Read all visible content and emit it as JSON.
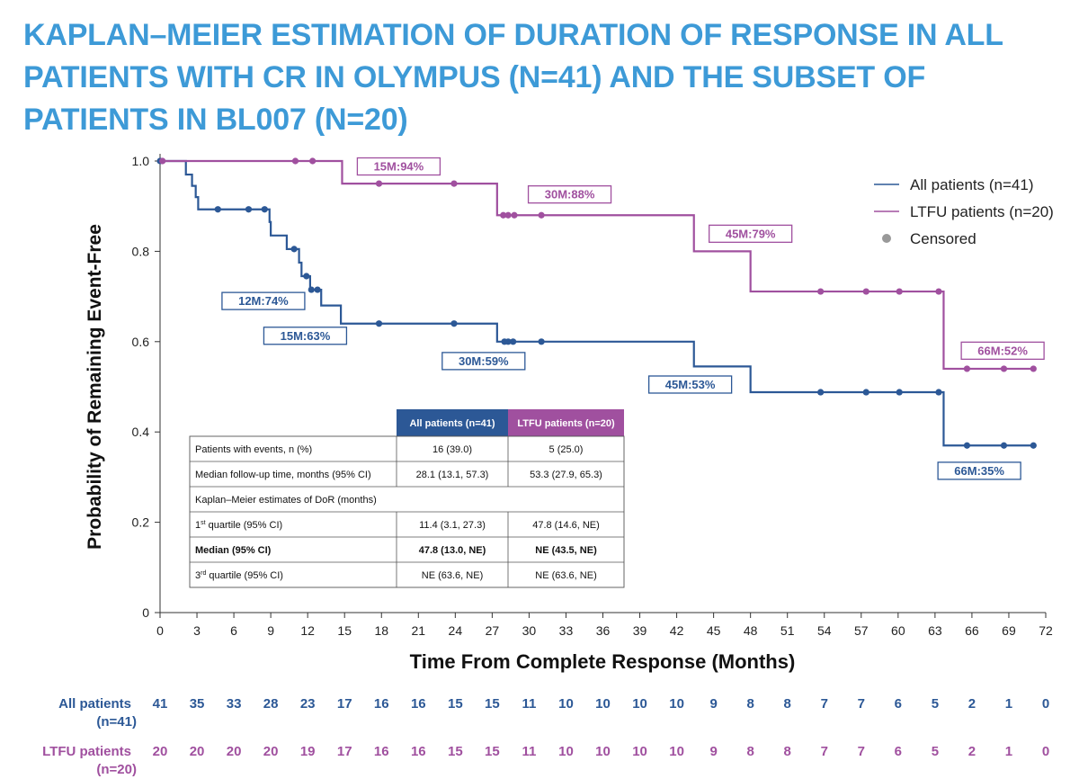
{
  "title": "KAPLAN–MEIER ESTIMATION OF DURATION OF RESPONSE IN ALL PATIENTS WITH CR IN OLYMPUS (N=41) AND THE SUBSET OF PATIENTS IN BL007 (N=20)",
  "colors": {
    "title": "#3d9ad7",
    "all": "#2c5896",
    "ltfu": "#a0509f",
    "censored": "#999999"
  },
  "chart_data": {
    "type": "line",
    "title": "KAPLAN–MEIER ESTIMATION OF DURATION OF RESPONSE IN ALL PATIENTS WITH CR IN OLYMPUS (N=41) AND THE SUBSET OF PATIENTS IN BL007 (N=20)",
    "xlabel": "Time From Complete Response (Months)",
    "ylabel": "Probability of Remaining Event-Free",
    "xlim": [
      0,
      72
    ],
    "ylim": [
      0,
      1.0
    ],
    "xticks": [
      0,
      3,
      6,
      9,
      12,
      15,
      18,
      21,
      24,
      27,
      30,
      33,
      36,
      39,
      42,
      45,
      48,
      51,
      54,
      57,
      60,
      63,
      66,
      69,
      72
    ],
    "yticks": [
      0,
      0.2,
      0.4,
      0.6,
      0.8,
      1.0
    ],
    "ytick_labels": [
      "0",
      "0.2",
      "0.4",
      "0.6",
      "0.8",
      "1.0"
    ],
    "legend_position": "top-right",
    "legend": [
      {
        "label": "All patients (n=41)",
        "kind": "line",
        "series": "all"
      },
      {
        "label": "LTFU patients (n=20)",
        "kind": "line",
        "series": "ltfu"
      },
      {
        "label": "Censored",
        "kind": "dot"
      }
    ],
    "series": [
      {
        "key": "all",
        "name": "All patients (n=41)",
        "steps": [
          [
            0,
            1.0
          ],
          [
            2.1,
            0.97
          ],
          [
            2.6,
            0.945
          ],
          [
            2.9,
            0.92
          ],
          [
            3.1,
            0.893
          ],
          [
            8.9,
            0.865
          ],
          [
            9.0,
            0.835
          ],
          [
            10.3,
            0.805
          ],
          [
            11.3,
            0.775
          ],
          [
            11.5,
            0.745
          ],
          [
            12.2,
            0.715
          ],
          [
            13.1,
            0.68
          ],
          [
            14.7,
            0.64
          ],
          [
            27.4,
            0.6
          ],
          [
            43.4,
            0.545
          ],
          [
            48.0,
            0.488
          ],
          [
            63.7,
            0.37
          ],
          [
            71.0,
            0.37
          ]
        ],
        "censored": [
          [
            0,
            1.0
          ],
          [
            4.7,
            0.893
          ],
          [
            7.2,
            0.893
          ],
          [
            8.5,
            0.893
          ],
          [
            10.9,
            0.805
          ],
          [
            11.9,
            0.745
          ],
          [
            12.3,
            0.715
          ],
          [
            12.8,
            0.715
          ],
          [
            17.8,
            0.64
          ],
          [
            23.9,
            0.64
          ],
          [
            28.0,
            0.6
          ],
          [
            28.3,
            0.6
          ],
          [
            28.7,
            0.6
          ],
          [
            31.0,
            0.6
          ],
          [
            53.7,
            0.488
          ],
          [
            57.4,
            0.488
          ],
          [
            60.1,
            0.488
          ],
          [
            63.3,
            0.488
          ],
          [
            65.6,
            0.37
          ],
          [
            68.6,
            0.37
          ],
          [
            71.0,
            0.37
          ]
        ]
      },
      {
        "key": "ltfu",
        "name": "LTFU patients (n=20)",
        "steps": [
          [
            0,
            1.0
          ],
          [
            14.8,
            0.95
          ],
          [
            27.4,
            0.88
          ],
          [
            43.4,
            0.8
          ],
          [
            48.0,
            0.711
          ],
          [
            63.7,
            0.54
          ],
          [
            71.0,
            0.54
          ]
        ],
        "censored": [
          [
            0.2,
            1.0
          ],
          [
            11.0,
            1.0
          ],
          [
            12.4,
            1.0
          ],
          [
            17.8,
            0.95
          ],
          [
            23.9,
            0.95
          ],
          [
            27.9,
            0.88
          ],
          [
            28.3,
            0.88
          ],
          [
            28.8,
            0.88
          ],
          [
            31.0,
            0.88
          ],
          [
            53.7,
            0.711
          ],
          [
            57.4,
            0.711
          ],
          [
            60.1,
            0.711
          ],
          [
            63.3,
            0.711
          ],
          [
            65.6,
            0.54
          ],
          [
            68.6,
            0.54
          ],
          [
            71.0,
            0.54
          ]
        ]
      }
    ],
    "annotations": [
      {
        "text": "12M:74%",
        "series": "all",
        "x": 8.4,
        "y": 0.69
      },
      {
        "text": "15M:63%",
        "series": "all",
        "x": 11.8,
        "y": 0.613
      },
      {
        "text": "30M:59%",
        "series": "all",
        "x": 26.3,
        "y": 0.557
      },
      {
        "text": "45M:53%",
        "series": "all",
        "x": 43.1,
        "y": 0.505
      },
      {
        "text": "66M:35%",
        "series": "all",
        "x": 66.6,
        "y": 0.314
      },
      {
        "text": "15M:94%",
        "series": "ltfu",
        "x": 19.4,
        "y": 0.988
      },
      {
        "text": "30M:88%",
        "series": "ltfu",
        "x": 33.3,
        "y": 0.926
      },
      {
        "text": "45M:79%",
        "series": "ltfu",
        "x": 48.0,
        "y": 0.839
      },
      {
        "text": "66M:52%",
        "series": "ltfu",
        "x": 68.5,
        "y": 0.58
      }
    ],
    "numbers_at_risk": {
      "times": [
        0,
        3,
        6,
        9,
        12,
        15,
        18,
        21,
        24,
        27,
        30,
        33,
        36,
        39,
        42,
        45,
        48,
        51,
        54,
        57,
        60,
        63,
        66,
        69,
        72
      ],
      "rows": [
        {
          "label": [
            "All patients",
            "(n=41)"
          ],
          "series": "all",
          "values": [
            41,
            35,
            33,
            28,
            23,
            17,
            16,
            16,
            15,
            15,
            11,
            10,
            10,
            10,
            10,
            9,
            8,
            8,
            7,
            7,
            6,
            5,
            2,
            1,
            0
          ]
        },
        {
          "label": [
            "LTFU patients",
            "(n=20)"
          ],
          "series": "ltfu",
          "values": [
            20,
            20,
            20,
            20,
            19,
            17,
            16,
            16,
            15,
            15,
            11,
            10,
            10,
            10,
            10,
            9,
            8,
            8,
            7,
            7,
            6,
            5,
            2,
            1,
            0
          ]
        }
      ]
    }
  },
  "summary_table": {
    "headers": [
      "All patients (n=41)",
      "LTFU patients (n=20)"
    ],
    "rows": [
      {
        "label": "Patients with events, n (%)",
        "cells": [
          "16 (39.0)",
          "5 (25.0)"
        ],
        "bold": false
      },
      {
        "label": "Median follow-up time, months (95% CI)",
        "cells": [
          "28.1 (13.1, 57.3)",
          "53.3 (27.9, 65.3)"
        ],
        "bold": false
      },
      {
        "label": "Kaplan–Meier estimates of DoR (months)",
        "span": true,
        "bold": false
      },
      {
        "label": "1st quartile (95% CI)",
        "label_pre": "1",
        "label_sup": "st",
        "label_post": " quartile (95% CI)",
        "cells": [
          "11.4 (3.1, 27.3)",
          "47.8 (14.6, NE)"
        ],
        "bold": false
      },
      {
        "label": "Median (95% CI)",
        "cells": [
          "47.8 (13.0, NE)",
          "NE (43.5, NE)"
        ],
        "bold": true
      },
      {
        "label": "3rd quartile (95% CI)",
        "label_pre": "3",
        "label_sup": "rd",
        "label_post": " quartile (95% CI)",
        "cells": [
          "NE (63.6, NE)",
          "NE (63.6, NE)"
        ],
        "bold": false
      }
    ]
  }
}
